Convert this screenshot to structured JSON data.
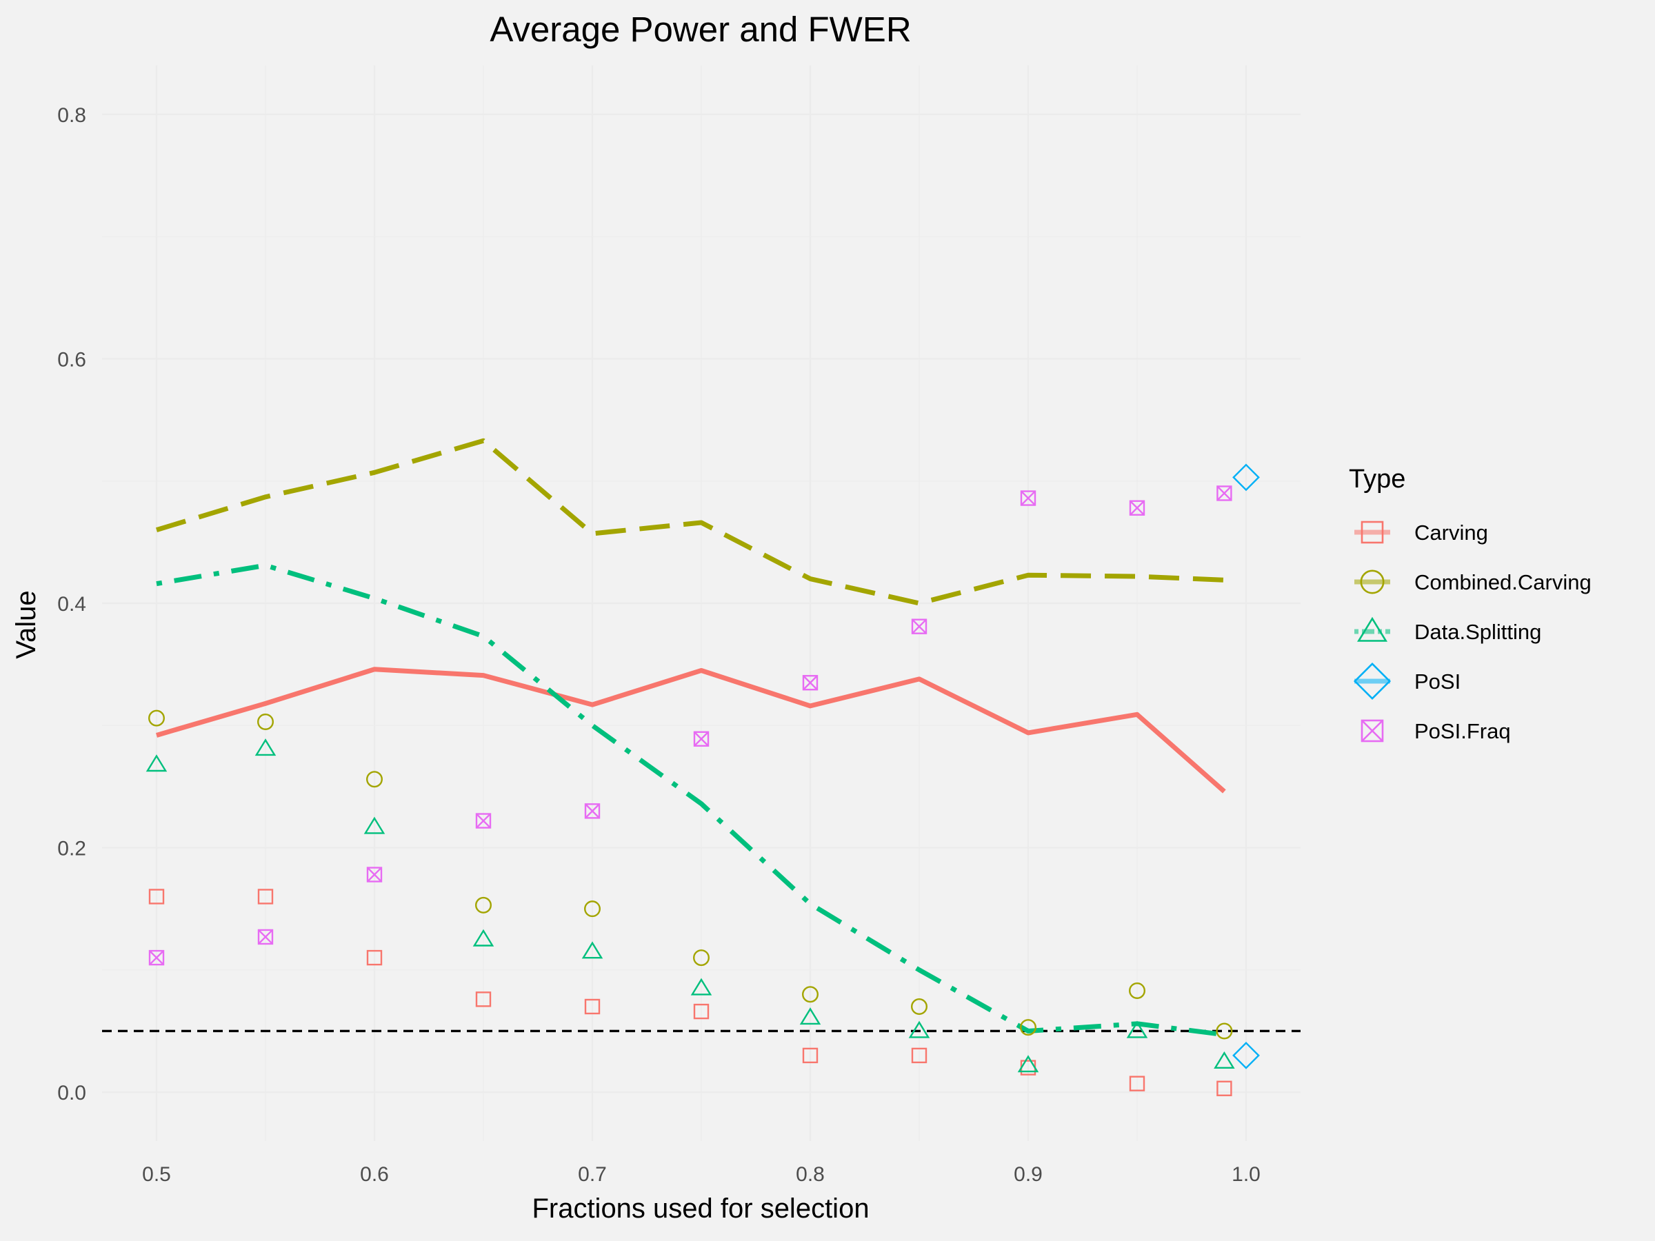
{
  "chart_data": {
    "type": "line",
    "title": "Average Power and FWER",
    "xlabel": "Fractions used for selection",
    "ylabel": "Value",
    "xlim": [
      0.475,
      1.025
    ],
    "ylim": [
      -0.04,
      0.84
    ],
    "x_ticks": [
      0.5,
      0.6,
      0.7,
      0.8,
      0.9,
      1.0
    ],
    "x_tick_labels": [
      "0.5",
      "0.6",
      "0.7",
      "0.8",
      "0.9",
      "1.0"
    ],
    "y_ticks": [
      0.0,
      0.2,
      0.4,
      0.6,
      0.8
    ],
    "y_tick_labels": [
      "0.0",
      "0.2",
      "0.4",
      "0.6",
      "0.8"
    ],
    "grid": true,
    "reference_line": {
      "y": 0.05,
      "style": "dashed",
      "color": "#000000"
    },
    "legend": {
      "title": "Type",
      "position": "right"
    },
    "x": [
      0.5,
      0.55,
      0.6,
      0.65,
      0.7,
      0.75,
      0.8,
      0.85,
      0.9,
      0.95,
      0.99
    ],
    "series": [
      {
        "name": "Carving",
        "color": "#F8766D",
        "marker": "square",
        "line_style": "solid",
        "power": [
          0.292,
          0.318,
          0.346,
          0.341,
          0.317,
          0.345,
          0.316,
          0.338,
          0.294,
          0.309,
          0.246
        ],
        "fwer": [
          0.16,
          0.16,
          0.11,
          0.076,
          0.07,
          0.066,
          0.03,
          0.03,
          0.02,
          0.007,
          0.003
        ]
      },
      {
        "name": "Combined.Carving",
        "color": "#A3A500",
        "marker": "circle",
        "line_style": "dashed",
        "power": [
          0.46,
          0.487,
          0.507,
          0.533,
          0.457,
          0.466,
          0.42,
          0.4,
          0.423,
          0.422,
          0.419
        ],
        "fwer": [
          0.306,
          0.303,
          0.256,
          0.153,
          0.15,
          0.11,
          0.08,
          0.07,
          0.053,
          0.083,
          0.05
        ]
      },
      {
        "name": "Data.Splitting",
        "color": "#00BF7D",
        "marker": "triangle",
        "line_style": "dotdash",
        "power": [
          0.416,
          0.431,
          0.404,
          0.373,
          0.3,
          0.236,
          0.154,
          0.1,
          0.05,
          0.056,
          0.047
        ],
        "fwer": [
          0.268,
          0.281,
          0.217,
          0.125,
          0.115,
          0.085,
          0.061,
          0.05,
          0.022,
          0.05,
          0.025
        ]
      },
      {
        "name": "PoSI",
        "color": "#00B0F6",
        "marker": "diamond",
        "line_style": "solid",
        "x": [
          1.0
        ],
        "power": [
          0.503
        ],
        "fwer": [
          0.03
        ]
      },
      {
        "name": "PoSI.Fraq",
        "color": "#E76BF3",
        "marker": "square-cross",
        "line_style": "none",
        "power": [
          0.11,
          0.127,
          0.178,
          0.222,
          0.23,
          0.289,
          0.335,
          0.381,
          0.486,
          0.478,
          0.49
        ]
      }
    ]
  }
}
